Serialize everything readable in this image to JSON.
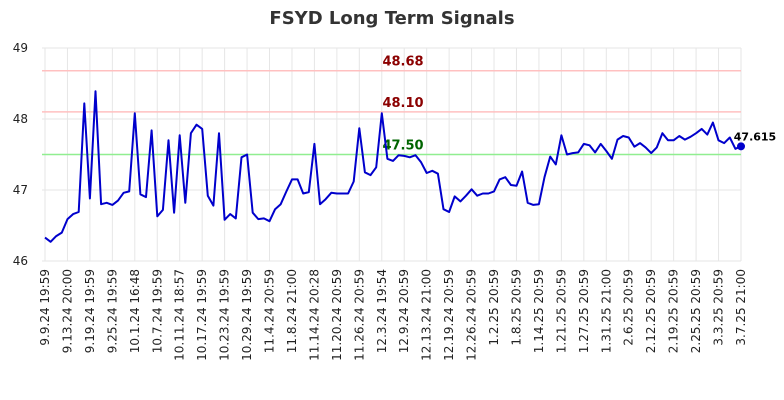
{
  "chart_data": {
    "type": "line",
    "title": "FSYD Long Term Signals",
    "xlabel": "",
    "ylabel": "",
    "ylim": [
      46,
      49
    ],
    "yticks": [
      46,
      47,
      48,
      49
    ],
    "grid": true,
    "x_tick_labels": [
      "9.9.24 19:59",
      "9.13.24 20:00",
      "9.19.24 19:59",
      "9.25.24 19:59",
      "10.1.24 16:48",
      "10.7.24 19:59",
      "10.11.24 18:57",
      "10.17.24 19:59",
      "10.23.24 19:59",
      "10.29.24 19:59",
      "11.4.24 20:59",
      "11.8.24 21:00",
      "11.14.24 20:28",
      "11.20.24 20:59",
      "11.26.24 20:59",
      "12.3.24 19:54",
      "12.9.24 20:59",
      "12.13.24 21:00",
      "12.19.24 20:59",
      "12.26.24 20:59",
      "1.2.25 20:59",
      "1.8.25 20:59",
      "1.14.25 20:59",
      "1.21.25 20:59",
      "1.27.25 20:59",
      "1.31.25 21:00",
      "2.6.25 20:59",
      "2.12.25 20:59",
      "2.19.25 20:59",
      "2.25.25 20:59",
      "3.3.25 20:59",
      "3.7.25 21:00"
    ],
    "reference_lines": [
      {
        "value": 48.68,
        "label": "48.68",
        "line_color": "#ffc0c0",
        "label_color": "#8b0000"
      },
      {
        "value": 48.1,
        "label": "48.10",
        "line_color": "#ffc0c0",
        "label_color": "#8b0000"
      },
      {
        "value": 47.5,
        "label": "47.50",
        "line_color": "#90ee90",
        "label_color": "#006400"
      }
    ],
    "series": [
      {
        "color": "#0000cc",
        "values": [
          46.33,
          46.27,
          46.35,
          46.4,
          46.59,
          46.66,
          46.69,
          48.22,
          46.88,
          48.39,
          46.8,
          46.82,
          46.79,
          46.85,
          46.96,
          46.98,
          48.08,
          46.94,
          46.9,
          47.84,
          46.63,
          46.72,
          47.7,
          46.68,
          47.77,
          46.82,
          47.8,
          47.92,
          47.86,
          46.92,
          46.78,
          47.8,
          46.58,
          46.66,
          46.6,
          47.46,
          47.5,
          46.68,
          46.59,
          46.6,
          46.56,
          46.73,
          46.8,
          46.98,
          47.15,
          47.15,
          46.95,
          46.97,
          47.65,
          46.8,
          46.87,
          46.96,
          46.95,
          46.95,
          46.95,
          47.12,
          47.87,
          47.25,
          47.21,
          47.32,
          48.08,
          47.44,
          47.41,
          47.49,
          47.48,
          47.46,
          47.49,
          47.39,
          47.24,
          47.27,
          47.23,
          46.73,
          46.69,
          46.91,
          46.84,
          46.92,
          47.01,
          46.92,
          46.95,
          46.95,
          46.98,
          47.15,
          47.18,
          47.07,
          47.06,
          47.26,
          46.82,
          46.79,
          46.8,
          47.18,
          47.47,
          47.36,
          47.77,
          47.5,
          47.52,
          47.53,
          47.65,
          47.63,
          47.53,
          47.65,
          47.55,
          47.44,
          47.71,
          47.76,
          47.74,
          47.61,
          47.66,
          47.6,
          47.52,
          47.6,
          47.8,
          47.7,
          47.7,
          47.76,
          47.71,
          47.75,
          47.8,
          47.86,
          47.78,
          47.95,
          47.7,
          47.66,
          47.74,
          47.58,
          47.615
        ]
      }
    ],
    "last_value_label": "47.615"
  }
}
